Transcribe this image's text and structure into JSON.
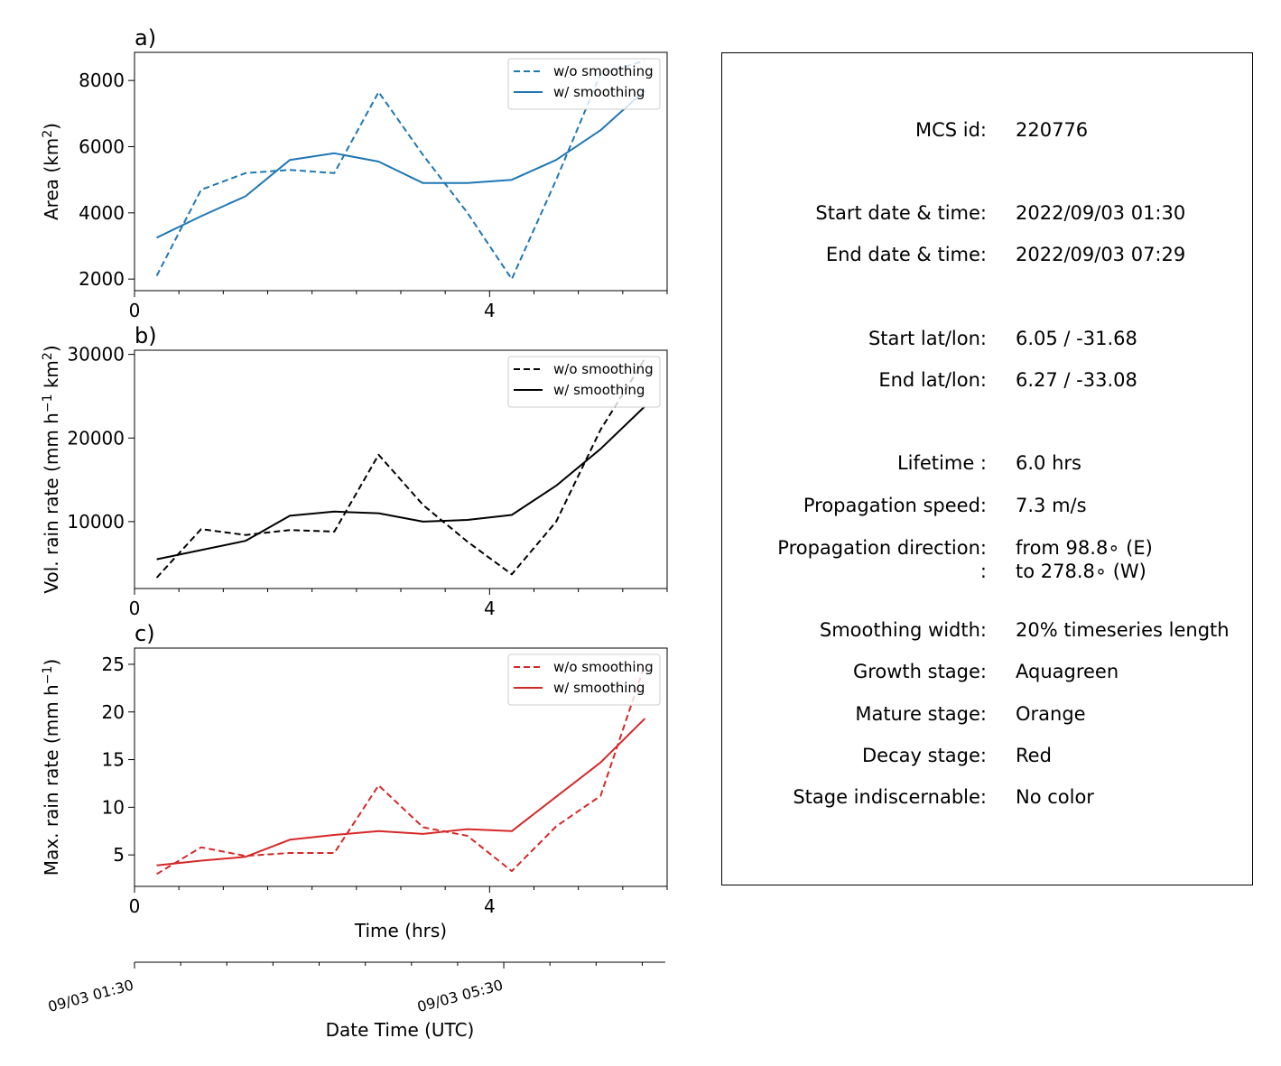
{
  "chart_data": [
    {
      "type": "line",
      "panel_label": "a)",
      "ylabel": "Area  (km²)",
      "ylabel_main": "Area  (km",
      "ylabel_sup": "2",
      "ylabel_tail": ")",
      "x_ticks": [
        "0",
        "4"
      ],
      "y_ticks": [
        "2000",
        "4000",
        "6000",
        "8000"
      ],
      "xlim": [
        0,
        6.0
      ],
      "ylim": [
        1650,
        8850
      ],
      "legend_position": "upper-right",
      "color": "#1f77b4",
      "x": [
        0.25,
        0.75,
        1.25,
        1.75,
        2.25,
        2.75,
        3.25,
        3.75,
        4.25,
        4.75,
        5.25,
        5.75
      ],
      "series": [
        {
          "name": "w/o smoothing",
          "style": "dashed",
          "values": [
            2100,
            4700,
            5200,
            5300,
            5200,
            7650,
            5750,
            4000,
            2000,
            5000,
            8200,
            8600
          ]
        },
        {
          "name": "w/ smoothing",
          "style": "solid",
          "values": [
            3250,
            3900,
            4500,
            5600,
            5800,
            5550,
            4900,
            4900,
            5000,
            5600,
            6500,
            7700
          ]
        }
      ]
    },
    {
      "type": "line",
      "panel_label": "b)",
      "ylabel": "Vol. rain rate (mm h⁻¹ km²)",
      "ylabel_main": "Vol. rain rate (mm h",
      "ylabel_sup": "−1",
      "ylabel_mid": " km",
      "ylabel_sup2": "2",
      "ylabel_tail": ")",
      "x_ticks": [
        "0",
        "4"
      ],
      "y_ticks": [
        "10000",
        "20000",
        "30000"
      ],
      "xlim": [
        0,
        6.0
      ],
      "ylim": [
        2000,
        30500
      ],
      "legend_position": "upper-right",
      "color": "#000000",
      "x": [
        0.25,
        0.75,
        1.25,
        1.75,
        2.25,
        2.75,
        3.25,
        3.75,
        4.25,
        4.75,
        5.25,
        5.75
      ],
      "series": [
        {
          "name": "w/o smoothing",
          "style": "dashed",
          "values": [
            3300,
            9100,
            8400,
            9000,
            8800,
            18000,
            12000,
            7600,
            3700,
            10000,
            21000,
            29500
          ]
        },
        {
          "name": "w/ smoothing",
          "style": "solid",
          "values": [
            5500,
            6600,
            7700,
            10700,
            11200,
            11000,
            10000,
            10200,
            10800,
            14300,
            18700,
            23800
          ]
        }
      ]
    },
    {
      "type": "line",
      "panel_label": "c)",
      "ylabel": "Max. rain rate  (mm h⁻¹)",
      "ylabel_main": "Max. rain rate  (mm h",
      "ylabel_sup": "−1",
      "ylabel_tail": ")",
      "xlabel": "Time (hrs)",
      "x_ticks": [
        "0",
        "4"
      ],
      "y_ticks": [
        "5",
        "10",
        "15",
        "20",
        "25"
      ],
      "xlim": [
        0,
        6.0
      ],
      "ylim": [
        1.7,
        26.7
      ],
      "legend_position": "upper-right",
      "color": "#d62728",
      "x": [
        0.25,
        0.75,
        1.25,
        1.75,
        2.25,
        2.75,
        3.25,
        3.75,
        4.25,
        4.75,
        5.25,
        5.75
      ],
      "series": [
        {
          "name": "w/o smoothing",
          "style": "dashed",
          "values": [
            3.0,
            5.8,
            4.9,
            5.2,
            5.2,
            12.3,
            7.9,
            7.0,
            3.3,
            8.0,
            11.2,
            25.0
          ]
        },
        {
          "name": "w/ smoothing",
          "style": "solid",
          "values": [
            3.9,
            4.4,
            4.8,
            6.6,
            7.1,
            7.5,
            7.2,
            7.7,
            7.5,
            11.1,
            14.7,
            19.3
          ]
        }
      ]
    }
  ],
  "datetime_axis": {
    "label": "Date Time (UTC)",
    "tick_labels": [
      "09/03 01:30",
      "09/03 05:30"
    ],
    "tick_hours": [
      0,
      4
    ],
    "minor_tick_hours": [
      0.5,
      1,
      1.5,
      2,
      2.5,
      3,
      3.5,
      4.5,
      5,
      5.5
    ]
  },
  "info": [
    {
      "label": "MCS id:",
      "value": "220776"
    },
    {
      "label": "Start date & time:",
      "value": "2022/09/03 01:30"
    },
    {
      "label": "End date & time:",
      "value": "2022/09/03 07:29"
    },
    {
      "label": "Start lat/lon:",
      "value": "6.05 / -31.68"
    },
    {
      "label": "End lat/lon:",
      "value": "6.27 / -33.08"
    },
    {
      "label": "Lifetime :",
      "value": "6.0 hrs"
    },
    {
      "label": "Propagation speed:",
      "value": "7.3 m/s"
    },
    {
      "label": "Propagation direction:",
      "value": "from  98.8∘ (E)"
    },
    {
      "label": ":",
      "value": "to   278.8∘ (W)"
    },
    {
      "label": "Smoothing width:",
      "value": "20% timeseries length"
    },
    {
      "label": "Growth stage:",
      "value": "Aquagreen"
    },
    {
      "label": "Mature stage:",
      "value": "Orange"
    },
    {
      "label": "Decay stage:",
      "value": "Red"
    },
    {
      "label": "Stage indiscernable:",
      "value": "No color"
    }
  ]
}
